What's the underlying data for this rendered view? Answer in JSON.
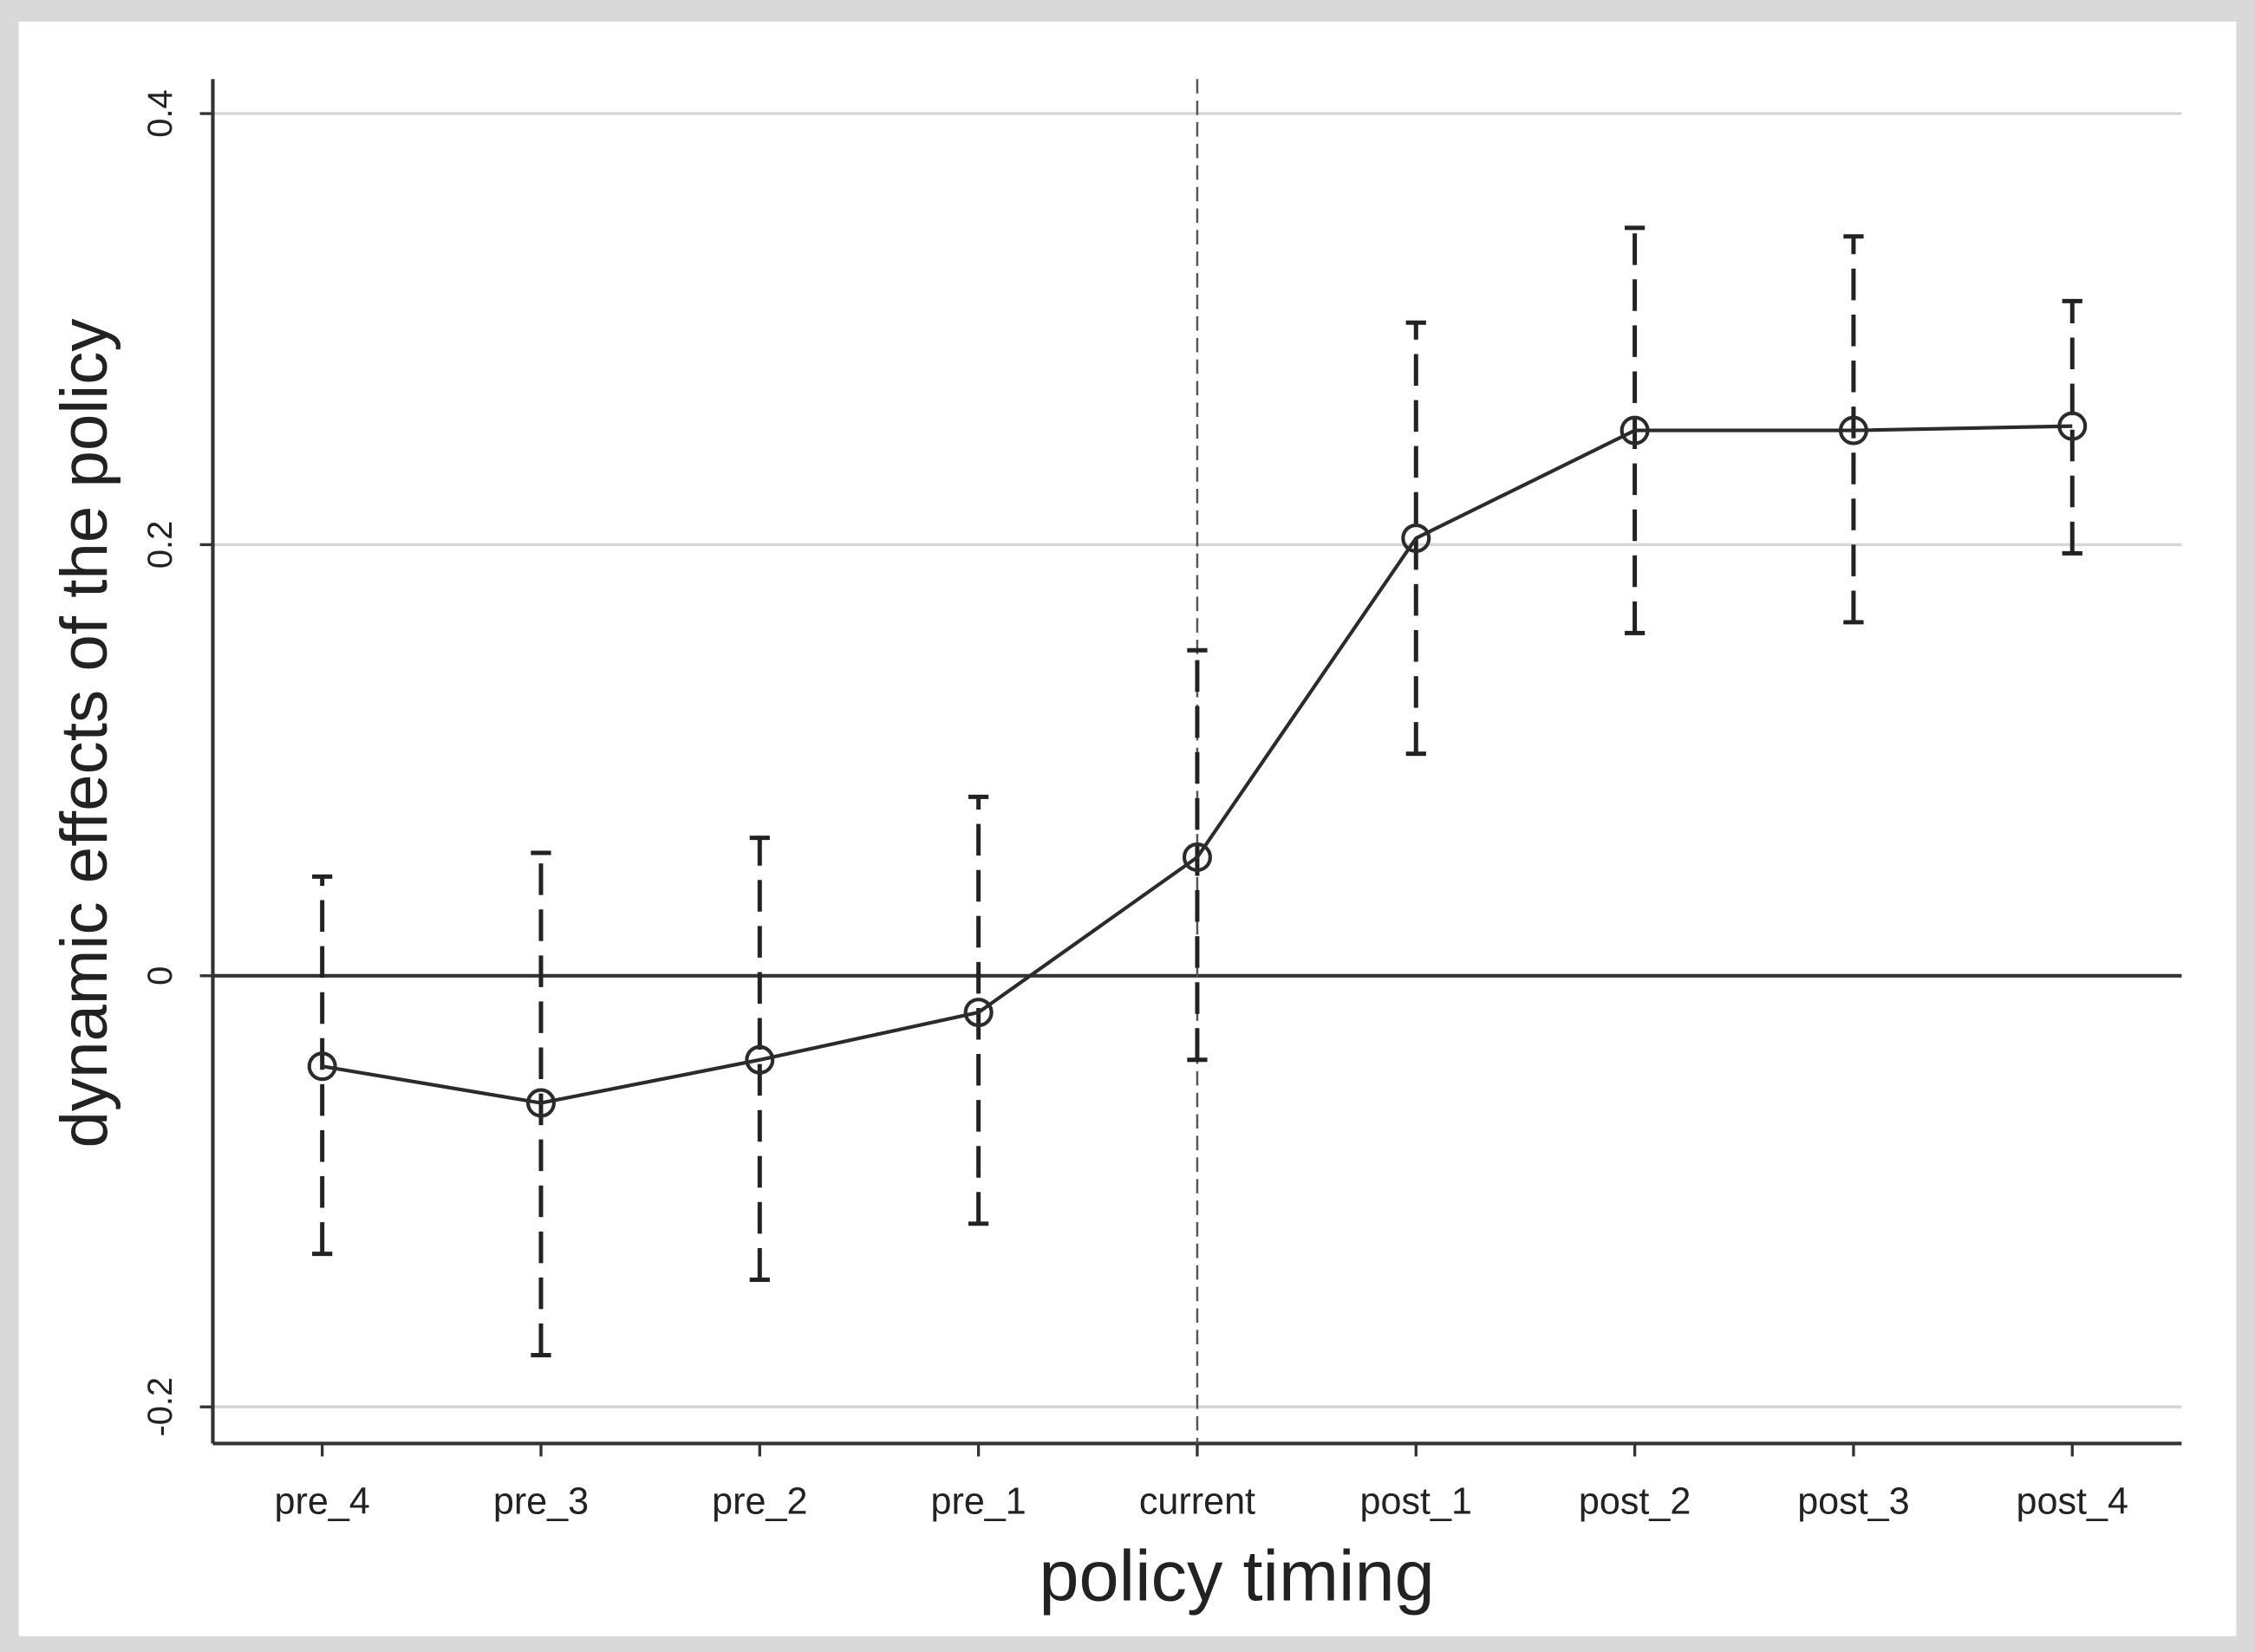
{
  "chart_data": {
    "type": "line",
    "x_label": "policy timing",
    "y_label": "dynamic effects of the policy",
    "categories": [
      "pre_4",
      "pre_3",
      "pre_2",
      "pre_1",
      "current",
      "post_1",
      "post_2",
      "post_3",
      "post_4"
    ],
    "series": [
      {
        "color": "#2b2b2b",
        "values": [
          -0.042,
          -0.059,
          -0.039,
          -0.017,
          0.055,
          0.203,
          0.253,
          0.253,
          0.255
        ],
        "ci_low": [
          -0.129,
          -0.176,
          -0.141,
          -0.115,
          -0.039,
          0.103,
          0.159,
          0.164,
          0.196
        ],
        "ci_high": [
          0.046,
          0.057,
          0.064,
          0.083,
          0.151,
          0.303,
          0.347,
          0.343,
          0.313
        ]
      }
    ],
    "ylim": [
      -0.217,
      0.416
    ],
    "yticks": [
      -0.2,
      0,
      0.2,
      0.4
    ],
    "grid": true,
    "xline": "current"
  }
}
